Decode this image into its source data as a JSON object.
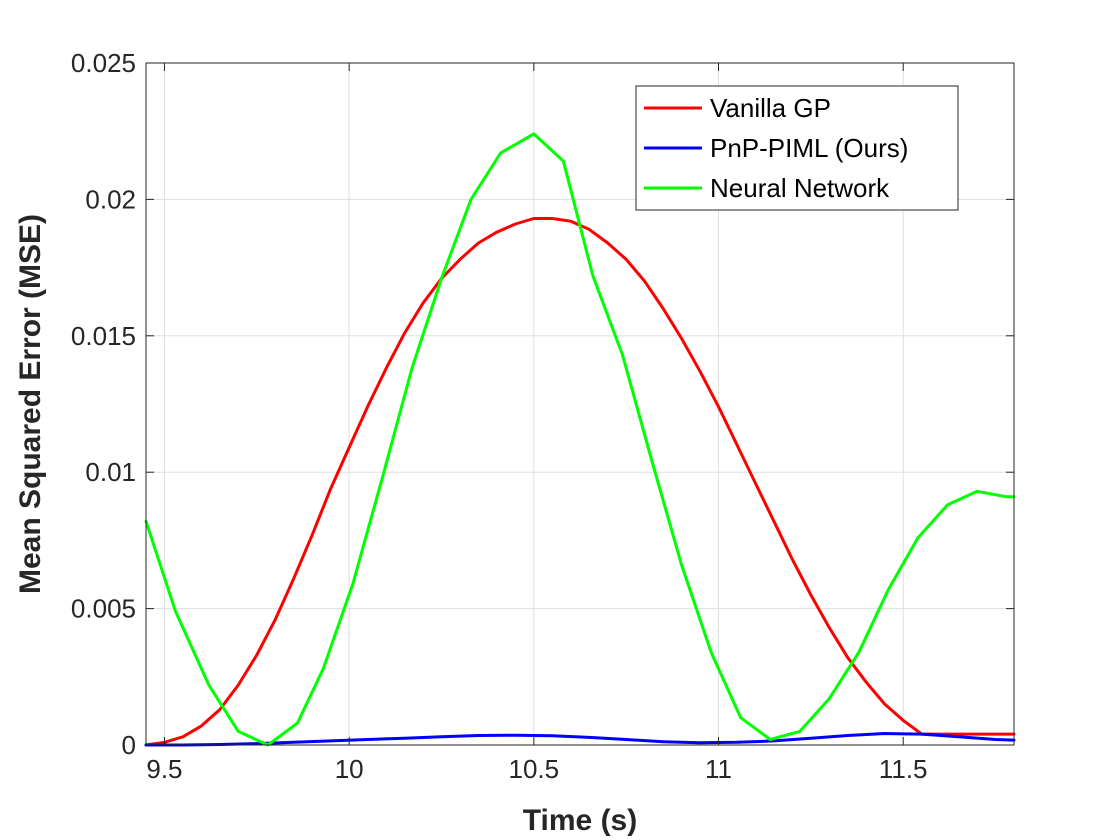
{
  "chart_data": {
    "type": "line",
    "title": "",
    "xlabel": "Time (s)",
    "ylabel": "Mean Squared Error (MSE)",
    "xlim": [
      9.45,
      11.8
    ],
    "ylim": [
      0,
      0.025
    ],
    "grid": true,
    "legend_position": "top-right",
    "x_ticks": [
      9.5,
      10,
      10.5,
      11,
      11.5
    ],
    "x_tick_labels": [
      "9.5",
      "10",
      "10.5",
      "11",
      "11.5"
    ],
    "y_ticks": [
      0,
      0.005,
      0.01,
      0.015,
      0.02,
      0.025
    ],
    "y_tick_labels": [
      "0",
      "0.005",
      "0.01",
      "0.015",
      "0.02",
      "0.025"
    ],
    "series": [
      {
        "name": "Vanilla GP",
        "color": "#ff0000",
        "x": [
          9.45,
          9.5,
          9.55,
          9.6,
          9.65,
          9.7,
          9.75,
          9.8,
          9.85,
          9.9,
          9.95,
          10.0,
          10.05,
          10.1,
          10.15,
          10.2,
          10.25,
          10.3,
          10.35,
          10.4,
          10.45,
          10.5,
          10.55,
          10.6,
          10.65,
          10.7,
          10.75,
          10.8,
          10.85,
          10.9,
          10.95,
          11.0,
          11.05,
          11.1,
          11.15,
          11.2,
          11.25,
          11.3,
          11.35,
          11.4,
          11.45,
          11.5,
          11.55,
          11.6,
          11.65,
          11.7,
          11.75,
          11.8
        ],
        "y": [
          0.0,
          0.0001,
          0.0003,
          0.0007,
          0.0013,
          0.0022,
          0.0033,
          0.0046,
          0.0061,
          0.0077,
          0.0094,
          0.0109,
          0.0124,
          0.0138,
          0.0151,
          0.0162,
          0.0171,
          0.0178,
          0.0184,
          0.0188,
          0.0191,
          0.0193,
          0.0193,
          0.0192,
          0.0189,
          0.0184,
          0.0178,
          0.017,
          0.016,
          0.0149,
          0.0137,
          0.0124,
          0.011,
          0.0096,
          0.0082,
          0.0068,
          0.0055,
          0.0043,
          0.0032,
          0.0023,
          0.0015,
          0.0009,
          0.0004,
          0.0004,
          0.0004,
          0.0004,
          0.0004,
          0.0004
        ]
      },
      {
        "name": "PnP-PIML (Ours)",
        "color": "#0000ff",
        "x": [
          9.45,
          9.55,
          9.65,
          9.75,
          9.85,
          9.95,
          10.05,
          10.15,
          10.25,
          10.35,
          10.45,
          10.55,
          10.65,
          10.75,
          10.85,
          10.95,
          11.05,
          11.15,
          11.25,
          11.35,
          11.45,
          11.55,
          11.65,
          11.75,
          11.8
        ],
        "y": [
          0.0,
          0.0,
          2e-05,
          5e-05,
          0.0001,
          0.00015,
          0.0002,
          0.00025,
          0.0003,
          0.00035,
          0.00036,
          0.00034,
          0.00028,
          0.0002,
          0.00012,
          8e-05,
          0.0001,
          0.00015,
          0.00025,
          0.00035,
          0.00042,
          0.0004,
          0.0003,
          0.0002,
          0.00018
        ]
      },
      {
        "name": "Neural Network",
        "color": "#00ff00",
        "x": [
          9.45,
          9.53,
          9.62,
          9.7,
          9.78,
          9.86,
          9.93,
          10.01,
          10.09,
          10.17,
          10.25,
          10.33,
          10.41,
          10.5,
          10.58,
          10.66,
          10.74,
          10.82,
          10.9,
          10.98,
          11.06,
          11.14,
          11.22,
          11.3,
          11.38,
          11.46,
          11.54,
          11.62,
          11.7,
          11.78,
          11.8
        ],
        "y": [
          0.0082,
          0.0049,
          0.0022,
          0.0005,
          0.0,
          0.0008,
          0.0028,
          0.0059,
          0.0098,
          0.0138,
          0.0171,
          0.02,
          0.0217,
          0.0224,
          0.0214,
          0.0172,
          0.0143,
          0.0104,
          0.0066,
          0.0034,
          0.001,
          0.0002,
          0.0005,
          0.0017,
          0.0034,
          0.0057,
          0.0076,
          0.0088,
          0.0093,
          0.0091,
          0.0091
        ]
      }
    ]
  }
}
